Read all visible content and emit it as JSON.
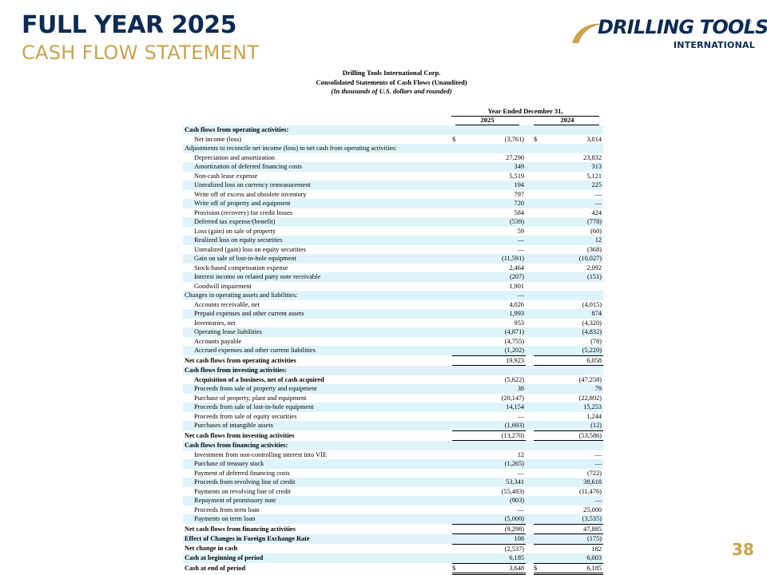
{
  "header": {
    "title": "FULL YEAR 2025",
    "subtitle": "CASH FLOW STATEMENT"
  },
  "logo": {
    "main": "DRILLING TOOLS",
    "registered": "®",
    "sub": "INTERNATIONAL",
    "colors": {
      "navy": "#0d2b52",
      "gold": "#c9a34e"
    }
  },
  "document": {
    "company": "Drilling Tools International Corp.",
    "statement": "Consolidated Statements of Cash Flows (Unaudited)",
    "units": "(In thousands of U.S. dollars and rounded)",
    "period_header": "Year Ended December 31,",
    "years": [
      "2025",
      "2024"
    ]
  },
  "rows": [
    {
      "label": "Cash flows from operating activities:",
      "style": "hdr",
      "c1": "",
      "v1": "",
      "c2": "",
      "v2": ""
    },
    {
      "label": "Net income (loss)",
      "style": "ind1",
      "c1": "$",
      "v1": "(3,761)",
      "c2": "$",
      "v2": "3,014"
    },
    {
      "label": "Adjustments to reconcile net income (loss) to net cash from operating activities:",
      "style": "",
      "c1": "",
      "v1": "",
      "c2": "",
      "v2": ""
    },
    {
      "label": "Depreciation and amortization",
      "style": "ind1",
      "c1": "",
      "v1": "27,290",
      "c2": "",
      "v2": "23,832"
    },
    {
      "label": "Amortization of deferred financing costs",
      "style": "ind1",
      "c1": "",
      "v1": "349",
      "c2": "",
      "v2": "313"
    },
    {
      "label": "Non-cash lease expense",
      "style": "ind1",
      "c1": "",
      "v1": "5,519",
      "c2": "",
      "v2": "5,121"
    },
    {
      "label": "Unrealized loss on currency remeasurement",
      "style": "ind1",
      "c1": "",
      "v1": "194",
      "c2": "",
      "v2": "225"
    },
    {
      "label": "Write off of excess and obsolete inventory",
      "style": "ind1",
      "c1": "",
      "v1": "797",
      "c2": "",
      "v2": "—"
    },
    {
      "label": "Write off of property and equipment",
      "style": "ind1",
      "c1": "",
      "v1": "720",
      "c2": "",
      "v2": "—"
    },
    {
      "label": "Provision (recovery) for credit losses",
      "style": "ind1",
      "c1": "",
      "v1": "584",
      "c2": "",
      "v2": "424"
    },
    {
      "label": "Deferred tax expense/(benefit)",
      "style": "ind1",
      "c1": "",
      "v1": "(539)",
      "c2": "",
      "v2": "(778)"
    },
    {
      "label": "Loss (gain) on sale of property",
      "style": "ind1",
      "c1": "",
      "v1": "59",
      "c2": "",
      "v2": "(60)"
    },
    {
      "label": "Realized loss on equity securities",
      "style": "ind1",
      "c1": "",
      "v1": "—",
      "c2": "",
      "v2": "12"
    },
    {
      "label": "Unrealized (gain) loss on equity securities",
      "style": "ind1",
      "c1": "",
      "v1": "—",
      "c2": "",
      "v2": "(368)"
    },
    {
      "label": "Gain on sale of lost-in-hole equipment",
      "style": "ind1",
      "c1": "",
      "v1": "(11,591)",
      "c2": "",
      "v2": "(10,027)"
    },
    {
      "label": "Stock-based compensation expense",
      "style": "ind1",
      "c1": "",
      "v1": "2,464",
      "c2": "",
      "v2": "2,092"
    },
    {
      "label": "Interest income on related party note receivable",
      "style": "ind1",
      "c1": "",
      "v1": "(207)",
      "c2": "",
      "v2": "(151)"
    },
    {
      "label": "Goodwill impairment",
      "style": "ind1",
      "c1": "",
      "v1": "1,901",
      "c2": "",
      "v2": ""
    },
    {
      "label": "Changes in operating assets and liabilities:",
      "style": "",
      "c1": "",
      "v1": "—",
      "c2": "",
      "v2": ""
    },
    {
      "label": "Accounts receivable, net",
      "style": "ind1",
      "c1": "",
      "v1": "4,026",
      "c2": "",
      "v2": "(4,015)"
    },
    {
      "label": "Prepaid expenses and other current assets",
      "style": "ind1",
      "c1": "",
      "v1": "1,993",
      "c2": "",
      "v2": "874"
    },
    {
      "label": "Inventories, net",
      "style": "ind1",
      "c1": "",
      "v1": "953",
      "c2": "",
      "v2": "(4,320)"
    },
    {
      "label": "Operating lease liabilities",
      "style": "ind1",
      "c1": "",
      "v1": "(4,871)",
      "c2": "",
      "v2": "(4,832)"
    },
    {
      "label": "Accounts payable",
      "style": "ind1",
      "c1": "",
      "v1": "(4,755)",
      "c2": "",
      "v2": "(78)"
    },
    {
      "label": "Accrued expenses and other current liabilities",
      "style": "ind1 ul",
      "c1": "",
      "v1": "(1,202)",
      "c2": "",
      "v2": "(5,220)"
    },
    {
      "label": "Net cash flows from operating activities",
      "style": "hdr ul",
      "c1": "",
      "v1": "19,923",
      "c2": "",
      "v2": "6,058"
    },
    {
      "label": "Cash flows from investing activities:",
      "style": "hdr",
      "c1": "",
      "v1": "",
      "c2": "",
      "v2": ""
    },
    {
      "label": "Acquisition of a business, net of cash acquired",
      "style": "hdr ind1",
      "c1": "",
      "v1": "(5,622)",
      "c2": "",
      "v2": "(47,258)"
    },
    {
      "label": "Proceeds from sale of property and equipment",
      "style": "ind1",
      "c1": "",
      "v1": "38",
      "c2": "",
      "v2": "79"
    },
    {
      "label": "Purchase of property, plant and equipment",
      "style": "ind1",
      "c1": "",
      "v1": "(20,147)",
      "c2": "",
      "v2": "(22,892)"
    },
    {
      "label": "Proceeds from sale of lost-in-hole equipment",
      "style": "ind1",
      "c1": "",
      "v1": "14,154",
      "c2": "",
      "v2": "15,253"
    },
    {
      "label": "Proceeds from sale of equity securities",
      "style": "ind1",
      "c1": "",
      "v1": "—",
      "c2": "",
      "v2": "1,244"
    },
    {
      "label": "Purchases of intangible assets",
      "style": "ind1 ul",
      "c1": "",
      "v1": "(1,693)",
      "c2": "",
      "v2": "(12)"
    },
    {
      "label": "Net cash flows from investing activities",
      "style": "hdr ul",
      "c1": "",
      "v1": "(13,270)",
      "c2": "",
      "v2": "(53,586)"
    },
    {
      "label": "Cash flows from financing activities:",
      "style": "hdr",
      "c1": "",
      "v1": "",
      "c2": "",
      "v2": ""
    },
    {
      "label": "Investment from non-controlling interest into VIE",
      "style": "ind1",
      "c1": "",
      "v1": "12",
      "c2": "",
      "v2": "—"
    },
    {
      "label": "Purchase of treasury stock",
      "style": "ind1",
      "c1": "",
      "v1": "(1,265)",
      "c2": "",
      "v2": "—"
    },
    {
      "label": "Payment of deferred financing costs",
      "style": "ind1",
      "c1": "",
      "v1": "—",
      "c2": "",
      "v2": "(722)"
    },
    {
      "label": "Proceeds from revolving line of credit",
      "style": "ind1",
      "c1": "",
      "v1": "53,341",
      "c2": "",
      "v2": "38,618"
    },
    {
      "label": "Payments on revolving line of credit",
      "style": "ind1",
      "c1": "",
      "v1": "(55,483)",
      "c2": "",
      "v2": "(11,476)"
    },
    {
      "label": "Repayment of promissory note",
      "style": "ind1",
      "c1": "",
      "v1": "(903)",
      "c2": "",
      "v2": "—"
    },
    {
      "label": "Proceeds from term loan",
      "style": "ind1",
      "c1": "",
      "v1": "—",
      "c2": "",
      "v2": "25,000"
    },
    {
      "label": "Payments on term loan",
      "style": "ind1 ul",
      "c1": "",
      "v1": "(5,000)",
      "c2": "",
      "v2": "(3,535)"
    },
    {
      "label": "Net cash flows from financing activities",
      "style": "hdr ul",
      "c1": "",
      "v1": "(9,298)",
      "c2": "",
      "v2": "47,885"
    },
    {
      "label": "Effect of Changes in Foreign Exchange Rate",
      "style": "hdr ul",
      "c1": "",
      "v1": "108",
      "c2": "",
      "v2": "(175)"
    },
    {
      "label": "Net change in cash",
      "style": "hdr",
      "c1": "",
      "v1": "(2,537)",
      "c2": "",
      "v2": "182"
    },
    {
      "label": "Cash at beginning of period",
      "style": "hdr ul",
      "c1": "",
      "v1": "6,185",
      "c2": "",
      "v2": "6,003"
    },
    {
      "label": "Cash at end of period",
      "style": "hdr dul",
      "c1": "$",
      "v1": "3,648",
      "c2": "$",
      "v2": "6,185"
    }
  ],
  "page_number": "38"
}
